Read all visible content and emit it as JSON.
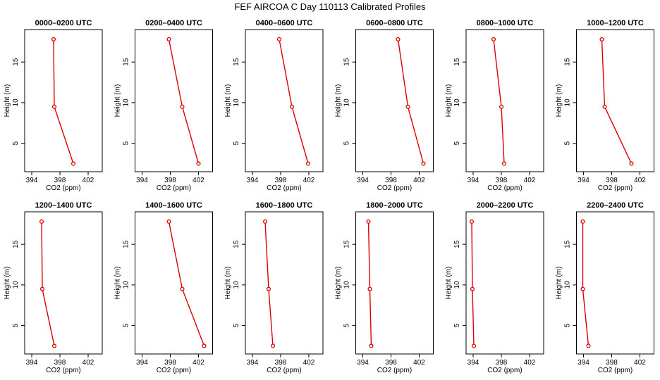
{
  "title": "FEF AIRCOA C  Day 110113  Calibrated Profiles",
  "chart_data": {
    "type": "line",
    "xlabel": "CO2 (ppm)",
    "ylabel": "Height (m)",
    "xlim": [
      393,
      404
    ],
    "ylim": [
      1.5,
      19
    ],
    "xticks": [
      "394",
      "398",
      "402"
    ],
    "yticks": [
      "5",
      "10",
      "15"
    ],
    "line_color": "#dd0000",
    "heights": [
      17.8,
      9.5,
      2.5
    ],
    "panels": [
      {
        "title": "0000–0200 UTC",
        "co2": [
          397.1,
          397.2,
          399.9
        ]
      },
      {
        "title": "0200–0400 UTC",
        "co2": [
          397.8,
          399.7,
          402.0
        ]
      },
      {
        "title": "0400–0600 UTC",
        "co2": [
          397.8,
          399.6,
          401.9
        ]
      },
      {
        "title": "0600–0800 UTC",
        "co2": [
          399.0,
          400.4,
          402.6
        ]
      },
      {
        "title": "0800–1000 UTC",
        "co2": [
          396.9,
          398.0,
          398.4
        ]
      },
      {
        "title": "1000–1200 UTC",
        "co2": [
          396.6,
          397.0,
          400.8
        ]
      },
      {
        "title": "1200–1400 UTC",
        "co2": [
          395.4,
          395.5,
          397.2
        ]
      },
      {
        "title": "1400–1600 UTC",
        "co2": [
          397.8,
          399.7,
          402.8
        ]
      },
      {
        "title": "1600–1800 UTC",
        "co2": [
          395.8,
          396.3,
          396.9
        ]
      },
      {
        "title": "1800–2000 UTC",
        "co2": [
          394.8,
          395.0,
          395.2
        ]
      },
      {
        "title": "2000–2200 UTC",
        "co2": [
          393.8,
          393.9,
          394.1
        ]
      },
      {
        "title": "2200–2400 UTC",
        "co2": [
          393.9,
          393.9,
          394.7
        ]
      }
    ]
  }
}
